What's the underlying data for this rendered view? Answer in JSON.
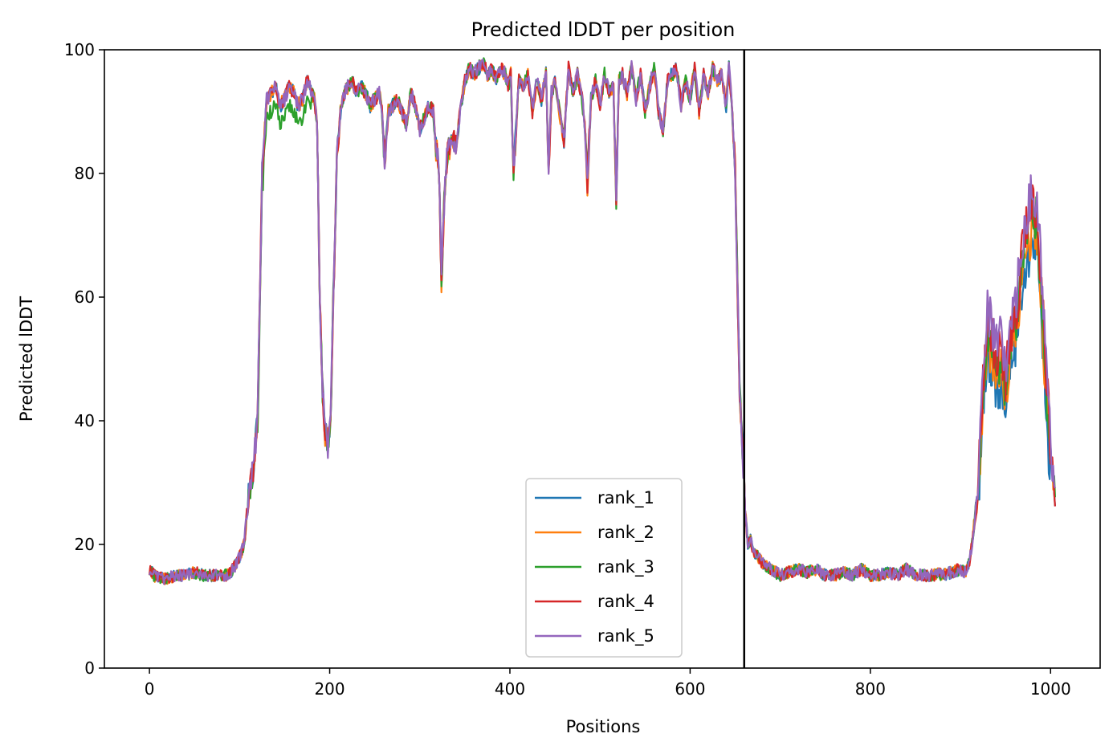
{
  "chart_data": {
    "type": "line",
    "title": "Predicted lDDT per position",
    "xlabel": "Positions",
    "ylabel": "Predicted lDDT",
    "xlim": [
      -50,
      1055
    ],
    "ylim": [
      0,
      100
    ],
    "xticks": [
      0,
      200,
      400,
      600,
      800,
      1000
    ],
    "yticks": [
      0,
      20,
      40,
      60,
      80,
      100
    ],
    "legend_position": "lower-center",
    "vline": {
      "x": 660,
      "color": "#000000"
    },
    "base_profile": {
      "x": [
        0,
        5,
        10,
        20,
        30,
        40,
        50,
        60,
        70,
        80,
        85,
        90,
        95,
        100,
        105,
        110,
        115,
        120,
        125,
        130,
        135,
        140,
        145,
        150,
        155,
        160,
        165,
        170,
        175,
        180,
        183,
        186,
        189,
        192,
        195,
        198,
        201,
        204,
        208,
        212,
        216,
        220,
        225,
        230,
        235,
        240,
        245,
        250,
        255,
        258,
        261,
        265,
        270,
        275,
        280,
        285,
        290,
        295,
        300,
        305,
        310,
        315,
        318,
        321,
        324,
        327,
        330,
        335,
        340,
        345,
        350,
        355,
        360,
        365,
        370,
        375,
        380,
        385,
        390,
        395,
        398,
        401,
        404,
        410,
        415,
        420,
        425,
        430,
        435,
        440,
        443,
        446,
        450,
        455,
        460,
        465,
        470,
        475,
        480,
        483,
        486,
        490,
        495,
        500,
        505,
        510,
        515,
        518,
        521,
        525,
        530,
        535,
        540,
        545,
        550,
        555,
        560,
        565,
        570,
        575,
        580,
        585,
        590,
        595,
        600,
        605,
        610,
        615,
        620,
        625,
        630,
        635,
        640,
        643,
        646,
        650,
        655,
        658,
        661,
        664,
        667,
        670,
        680,
        690,
        700,
        710,
        720,
        730,
        740,
        750,
        760,
        770,
        780,
        790,
        800,
        810,
        820,
        830,
        840,
        850,
        860,
        870,
        875,
        880,
        890,
        900,
        905,
        910,
        915,
        920,
        925,
        930,
        935,
        940,
        945,
        950,
        955,
        960,
        965,
        970,
        975,
        980,
        985,
        990,
        995,
        1000,
        1005
      ],
      "y": [
        16,
        15,
        14.5,
        14.5,
        15,
        15,
        15.5,
        15,
        15,
        15,
        15,
        15.5,
        16.5,
        18,
        20,
        28,
        32,
        40,
        80,
        92,
        93,
        94,
        91,
        92,
        94,
        93,
        91,
        92,
        95,
        93,
        92,
        88,
        60,
        45,
        38,
        36,
        40,
        60,
        82,
        90,
        93,
        94,
        95,
        93,
        94,
        93,
        91,
        92,
        93,
        90,
        82,
        90,
        91,
        92,
        90,
        88,
        93,
        91,
        87,
        89,
        91,
        90,
        84,
        82,
        62,
        75,
        82,
        86,
        84,
        90,
        95,
        97,
        96,
        97,
        98,
        96,
        97,
        95,
        97,
        96,
        94,
        96,
        80,
        95,
        94,
        96,
        90,
        95,
        92,
        96,
        80,
        93,
        95,
        90,
        85,
        97,
        93,
        96,
        92,
        88,
        78,
        92,
        95,
        91,
        96,
        93,
        94,
        76,
        95,
        96,
        93,
        97,
        92,
        96,
        90,
        94,
        97,
        90,
        87,
        95,
        96,
        97,
        91,
        95,
        92,
        97,
        90,
        96,
        93,
        97,
        95,
        96,
        91,
        97,
        92,
        80,
        45,
        36,
        26,
        20,
        21,
        19,
        17,
        16,
        15,
        15.5,
        16,
        15.5,
        16,
        15,
        15,
        15.5,
        15,
        16,
        15,
        15,
        15.5,
        15,
        16,
        15,
        15,
        15,
        15.5,
        15,
        15.5,
        16,
        15.5,
        17,
        23,
        30,
        45,
        55,
        52,
        48,
        50,
        45,
        52,
        55,
        60,
        68,
        70,
        74,
        72,
        60,
        45,
        35,
        28
      ]
    },
    "series": [
      {
        "name": "rank_1",
        "color": "#1f77b4"
      },
      {
        "name": "rank_2",
        "color": "#ff7f0e"
      },
      {
        "name": "rank_3",
        "color": "#2ca02c"
      },
      {
        "name": "rank_4",
        "color": "#d62728"
      },
      {
        "name": "rank_5",
        "color": "#9467bd"
      }
    ]
  }
}
